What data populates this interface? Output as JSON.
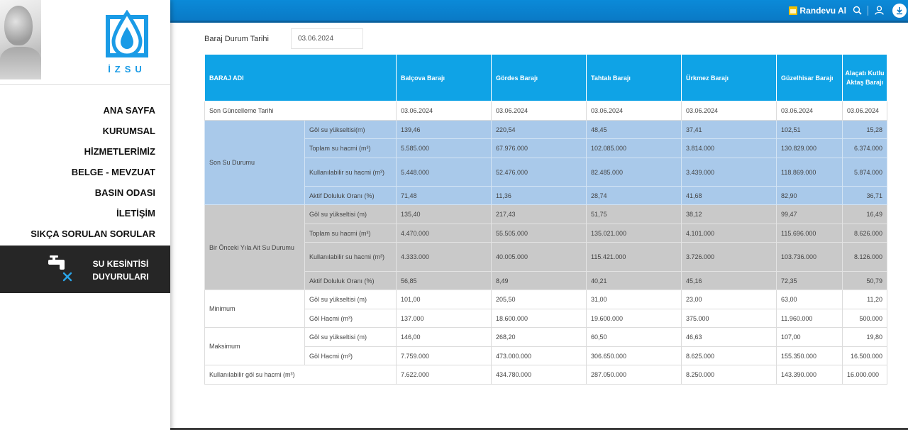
{
  "sidebar": {
    "logo_text": "İZSU",
    "nav": [
      "ANA SAYFA",
      "KURUMSAL",
      "HİZMETLERİMİZ",
      "BELGE - MEVZUAT",
      "BASIN ODASI",
      "İLETİŞİM",
      "SIKÇA SORULAN SORULAR"
    ],
    "outage_line1": "SU KESİNTİSİ",
    "outage_line2": "DUYURULARI"
  },
  "topbar": {
    "appointment_label": "Randevu Al"
  },
  "filter": {
    "label": "Baraj Durum Tarihi",
    "value": "03.06.2024"
  },
  "table": {
    "header_title": "BARAJ ADI",
    "dams": [
      "Balçova Barajı",
      "Gördes Barajı",
      "Tahtalı Barajı",
      "Ürkmez Barajı",
      "Güzelhisar Barajı",
      "Alaçatı Kutlu Aktaş Barajı"
    ],
    "update_row": {
      "label": "Son Güncelleme Tarihi",
      "values": [
        "03.06.2024",
        "03.06.2024",
        "03.06.2024",
        "03.06.2024",
        "03.06.2024",
        "03.06.2024"
      ]
    },
    "current": {
      "group": "Son Su Durumu",
      "rows": [
        {
          "label": "Göl su yükseltisi(m)",
          "values": [
            "139,46",
            "220,54",
            "48,45",
            "37,41",
            "102,51",
            "15,28"
          ]
        },
        {
          "label": "Toplam su hacmi (m³)",
          "values": [
            "5.585.000",
            "67.976.000",
            "102.085.000",
            "3.814.000",
            "130.829.000",
            "6.374.000"
          ]
        },
        {
          "label": "Kullanılabilir su hacmi (m³)",
          "values": [
            "5.448.000",
            "52.476.000",
            "82.485.000",
            "3.439.000",
            "118.869.000",
            "5.874.000"
          ]
        },
        {
          "label": "Aktif Doluluk Oranı (%)",
          "values": [
            "71,48",
            "11,36",
            "28,74",
            "41,68",
            "82,90",
            "36,71"
          ]
        }
      ]
    },
    "previous": {
      "group": "Bir Önceki Yıla Ait Su Durumu",
      "rows": [
        {
          "label": "Göl su yükseltisi (m)",
          "values": [
            "135,40",
            "217,43",
            "51,75",
            "38,12",
            "99,47",
            "16,49"
          ]
        },
        {
          "label": "Toplam su hacmi (m³)",
          "values": [
            "4.470.000",
            "55.505.000",
            "135.021.000",
            "4.101.000",
            "115.696.000",
            "8.626.000"
          ]
        },
        {
          "label": "Kullanılabilir su hacmi (m³)",
          "values": [
            "4.333.000",
            "40.005.000",
            "115.421.000",
            "3.726.000",
            "103.736.000",
            "8.126.000"
          ]
        },
        {
          "label": "Aktif Doluluk Oranı (%)",
          "values": [
            "56,85",
            "8,49",
            "40,21",
            "45,16",
            "72,35",
            "50,79"
          ]
        }
      ]
    },
    "minimum": {
      "group": "Minimum",
      "rows": [
        {
          "label": "Göl su yükseltisi (m)",
          "values": [
            "101,00",
            "205,50",
            "31,00",
            "23,00",
            "63,00",
            "11,20"
          ]
        },
        {
          "label": "Göl Hacmi (m³)",
          "values": [
            "137.000",
            "18.600.000",
            "19.600.000",
            "375.000",
            "11.960.000",
            "500.000"
          ]
        }
      ]
    },
    "maximum": {
      "group": "Maksimum",
      "rows": [
        {
          "label": "Göl su yükseltisi (m)",
          "values": [
            "146,00",
            "268,20",
            "60,50",
            "46,63",
            "107,00",
            "19,80"
          ]
        },
        {
          "label": "Göl Hacmi (m³)",
          "values": [
            "7.759.000",
            "473.000.000",
            "306.650.000",
            "8.625.000",
            "155.350.000",
            "16.500.000"
          ]
        }
      ]
    },
    "usable_row": {
      "label": "Kullanılabilir göl su hacmi (m³)",
      "values": [
        "7.622.000",
        "434.780.000",
        "287.050.000",
        "8.250.000",
        "143.390.000",
        "16.000.000"
      ]
    }
  }
}
